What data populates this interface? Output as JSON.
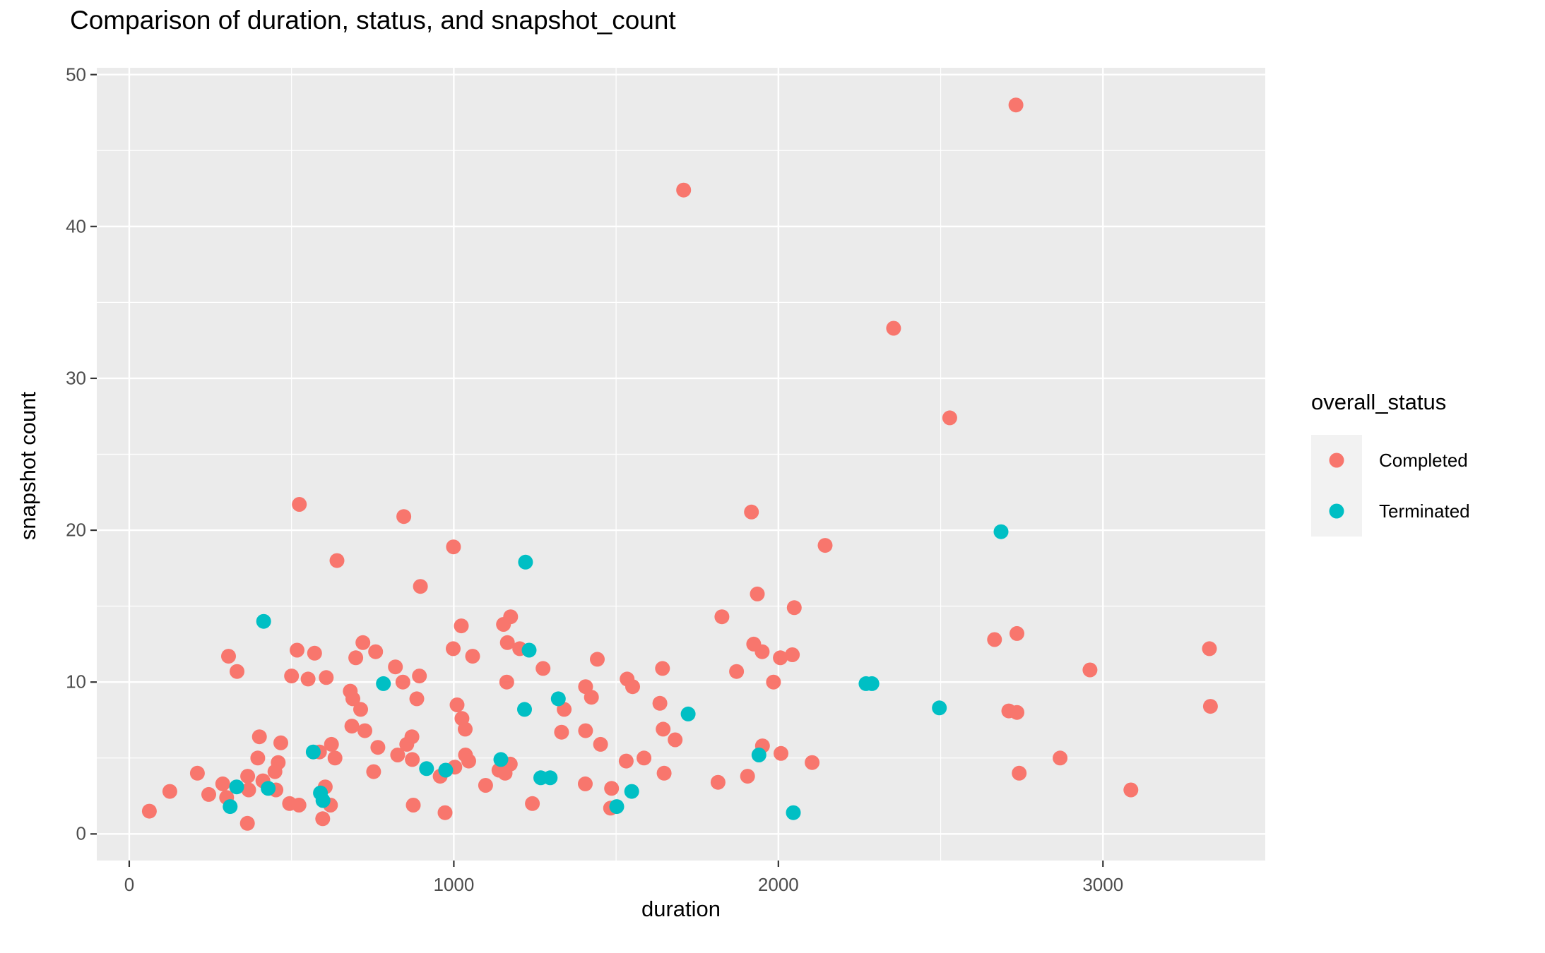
{
  "title": "Comparison of duration, status, and snapshot_count",
  "x_axis": {
    "label": "duration",
    "ticks": [
      0,
      1000,
      2000,
      3000
    ],
    "minor_gridlines": [
      500,
      1500,
      2500
    ],
    "domain": [
      -100,
      3500
    ]
  },
  "y_axis": {
    "label": "snapshot count",
    "ticks": [
      0,
      10,
      20,
      30,
      40,
      50
    ],
    "minor_gridlines": [
      5,
      15,
      25,
      35,
      45
    ],
    "domain": [
      -1.75,
      50.45
    ]
  },
  "legend": {
    "title": "overall_status",
    "entries": [
      {
        "label": "Completed",
        "color": "#F8766D"
      },
      {
        "label": "Terminated",
        "color": "#00BFC4"
      }
    ]
  },
  "colors": {
    "panel_background": "#EBEBEB",
    "gridline": "#FFFFFF",
    "tick_mark": "#333333",
    "tick_label": "#4D4D4D",
    "completed": "#F8766D",
    "terminated": "#00BFC4"
  },
  "chart_data": {
    "type": "scatter",
    "title": "Comparison of duration, status, and snapshot_count",
    "xlabel": "duration",
    "ylabel": "snapshot count",
    "xlim": [
      -100,
      3500
    ],
    "ylim": [
      -1.75,
      50.45
    ],
    "grid": true,
    "legend_position": "right",
    "point_radius_px": 10.5,
    "series": [
      {
        "name": "Completed",
        "color": "#F8766D",
        "points": [
          [
            2732,
            48.0
          ],
          [
            1708,
            42.4
          ],
          [
            2355,
            33.3
          ],
          [
            2528,
            27.4
          ],
          [
            524,
            21.7
          ],
          [
            846,
            20.9
          ],
          [
            1917,
            21.2
          ],
          [
            2144,
            19.0
          ],
          [
            999,
            18.9
          ],
          [
            640,
            18.0
          ],
          [
            897,
            16.3
          ],
          [
            1935,
            15.8
          ],
          [
            2049,
            14.9
          ],
          [
            1826,
            14.3
          ],
          [
            1023,
            13.7
          ],
          [
            1153,
            13.8
          ],
          [
            1175,
            14.3
          ],
          [
            2666,
            12.8
          ],
          [
            2735,
            13.2
          ],
          [
            306,
            11.7
          ],
          [
            517,
            12.1
          ],
          [
            571,
            11.9
          ],
          [
            720,
            12.6
          ],
          [
            759,
            12.0
          ],
          [
            698,
            11.6
          ],
          [
            1165,
            12.6
          ],
          [
            1203,
            12.2
          ],
          [
            998,
            12.2
          ],
          [
            1924,
            12.5
          ],
          [
            1950,
            12.0
          ],
          [
            3328,
            12.2
          ],
          [
            332,
            10.7
          ],
          [
            500,
            10.4
          ],
          [
            551,
            10.2
          ],
          [
            607,
            10.3
          ],
          [
            820,
            11.0
          ],
          [
            1058,
            11.7
          ],
          [
            1275,
            10.9
          ],
          [
            1442,
            11.5
          ],
          [
            1534,
            10.2
          ],
          [
            1551,
            9.7
          ],
          [
            1643,
            10.9
          ],
          [
            1871,
            10.7
          ],
          [
            2006,
            11.6
          ],
          [
            2043,
            11.8
          ],
          [
            1985,
            10.0
          ],
          [
            2960,
            10.8
          ],
          [
            843,
            10.0
          ],
          [
            894,
            10.4
          ],
          [
            1163,
            10.0
          ],
          [
            681,
            9.4
          ],
          [
            689,
            8.9
          ],
          [
            886,
            8.9
          ],
          [
            1406,
            9.7
          ],
          [
            1424,
            9.0
          ],
          [
            1340,
            8.2
          ],
          [
            1635,
            8.6
          ],
          [
            2710,
            8.1
          ],
          [
            2735,
            8.0
          ],
          [
            3331,
            8.4
          ],
          [
            1010,
            8.5
          ],
          [
            1025,
            7.6
          ],
          [
            1035,
            6.9
          ],
          [
            713,
            8.2
          ],
          [
            686,
            7.1
          ],
          [
            726,
            6.8
          ],
          [
            401,
            6.4
          ],
          [
            467,
            6.0
          ],
          [
            623,
            5.9
          ],
          [
            586,
            5.4
          ],
          [
            634,
            5.0
          ],
          [
            766,
            5.7
          ],
          [
            855,
            5.9
          ],
          [
            871,
            6.4
          ],
          [
            827,
            5.2
          ],
          [
            872,
            4.9
          ],
          [
            1332,
            6.7
          ],
          [
            1645,
            6.9
          ],
          [
            1682,
            6.2
          ],
          [
            1951,
            5.8
          ],
          [
            1406,
            6.8
          ],
          [
            1452,
            5.9
          ],
          [
            396,
            5.0
          ],
          [
            459,
            4.7
          ],
          [
            449,
            4.1
          ],
          [
            365,
            3.8
          ],
          [
            412,
            3.5
          ],
          [
            368,
            2.9
          ],
          [
            452,
            2.9
          ],
          [
            753,
            4.1
          ],
          [
            1036,
            5.2
          ],
          [
            1046,
            4.8
          ],
          [
            1139,
            4.2
          ],
          [
            1158,
            4.0
          ],
          [
            1174,
            4.6
          ],
          [
            1003,
            4.4
          ],
          [
            958,
            3.8
          ],
          [
            1531,
            4.8
          ],
          [
            1586,
            5.0
          ],
          [
            2008,
            5.3
          ],
          [
            2104,
            4.7
          ],
          [
            2868,
            5.0
          ],
          [
            2742,
            4.0
          ],
          [
            1648,
            4.0
          ],
          [
            210,
            4.0
          ],
          [
            288,
            3.3
          ],
          [
            125,
            2.8
          ],
          [
            245,
            2.6
          ],
          [
            300,
            2.4
          ],
          [
            604,
            3.1
          ],
          [
            1405,
            3.3
          ],
          [
            1098,
            3.2
          ],
          [
            1486,
            3.0
          ],
          [
            1814,
            3.4
          ],
          [
            1905,
            3.8
          ],
          [
            3086,
            2.9
          ],
          [
            62,
            1.5
          ],
          [
            364,
            0.7
          ],
          [
            494,
            2.0
          ],
          [
            523,
            1.9
          ],
          [
            620,
            1.9
          ],
          [
            596,
            1.0
          ],
          [
            875,
            1.9
          ],
          [
            973,
            1.4
          ],
          [
            1242,
            2.0
          ],
          [
            1483,
            1.7
          ]
        ]
      },
      {
        "name": "Terminated",
        "color": "#00BFC4",
        "points": [
          [
            2686,
            19.9
          ],
          [
            1221,
            17.9
          ],
          [
            414,
            14.0
          ],
          [
            1232,
            12.1
          ],
          [
            783,
            9.9
          ],
          [
            2270,
            9.9
          ],
          [
            2288,
            9.9
          ],
          [
            1322,
            8.9
          ],
          [
            1218,
            8.2
          ],
          [
            1722,
            7.9
          ],
          [
            2496,
            8.3
          ],
          [
            567,
            5.4
          ],
          [
            1145,
            4.9
          ],
          [
            916,
            4.3
          ],
          [
            975,
            4.2
          ],
          [
            1940,
            5.2
          ],
          [
            331,
            3.1
          ],
          [
            428,
            3.0
          ],
          [
            589,
            2.7
          ],
          [
            597,
            2.2
          ],
          [
            1268,
            3.7
          ],
          [
            1297,
            3.7
          ],
          [
            1548,
            2.8
          ],
          [
            311,
            1.8
          ],
          [
            1502,
            1.8
          ],
          [
            2046,
            1.4
          ]
        ]
      }
    ]
  }
}
